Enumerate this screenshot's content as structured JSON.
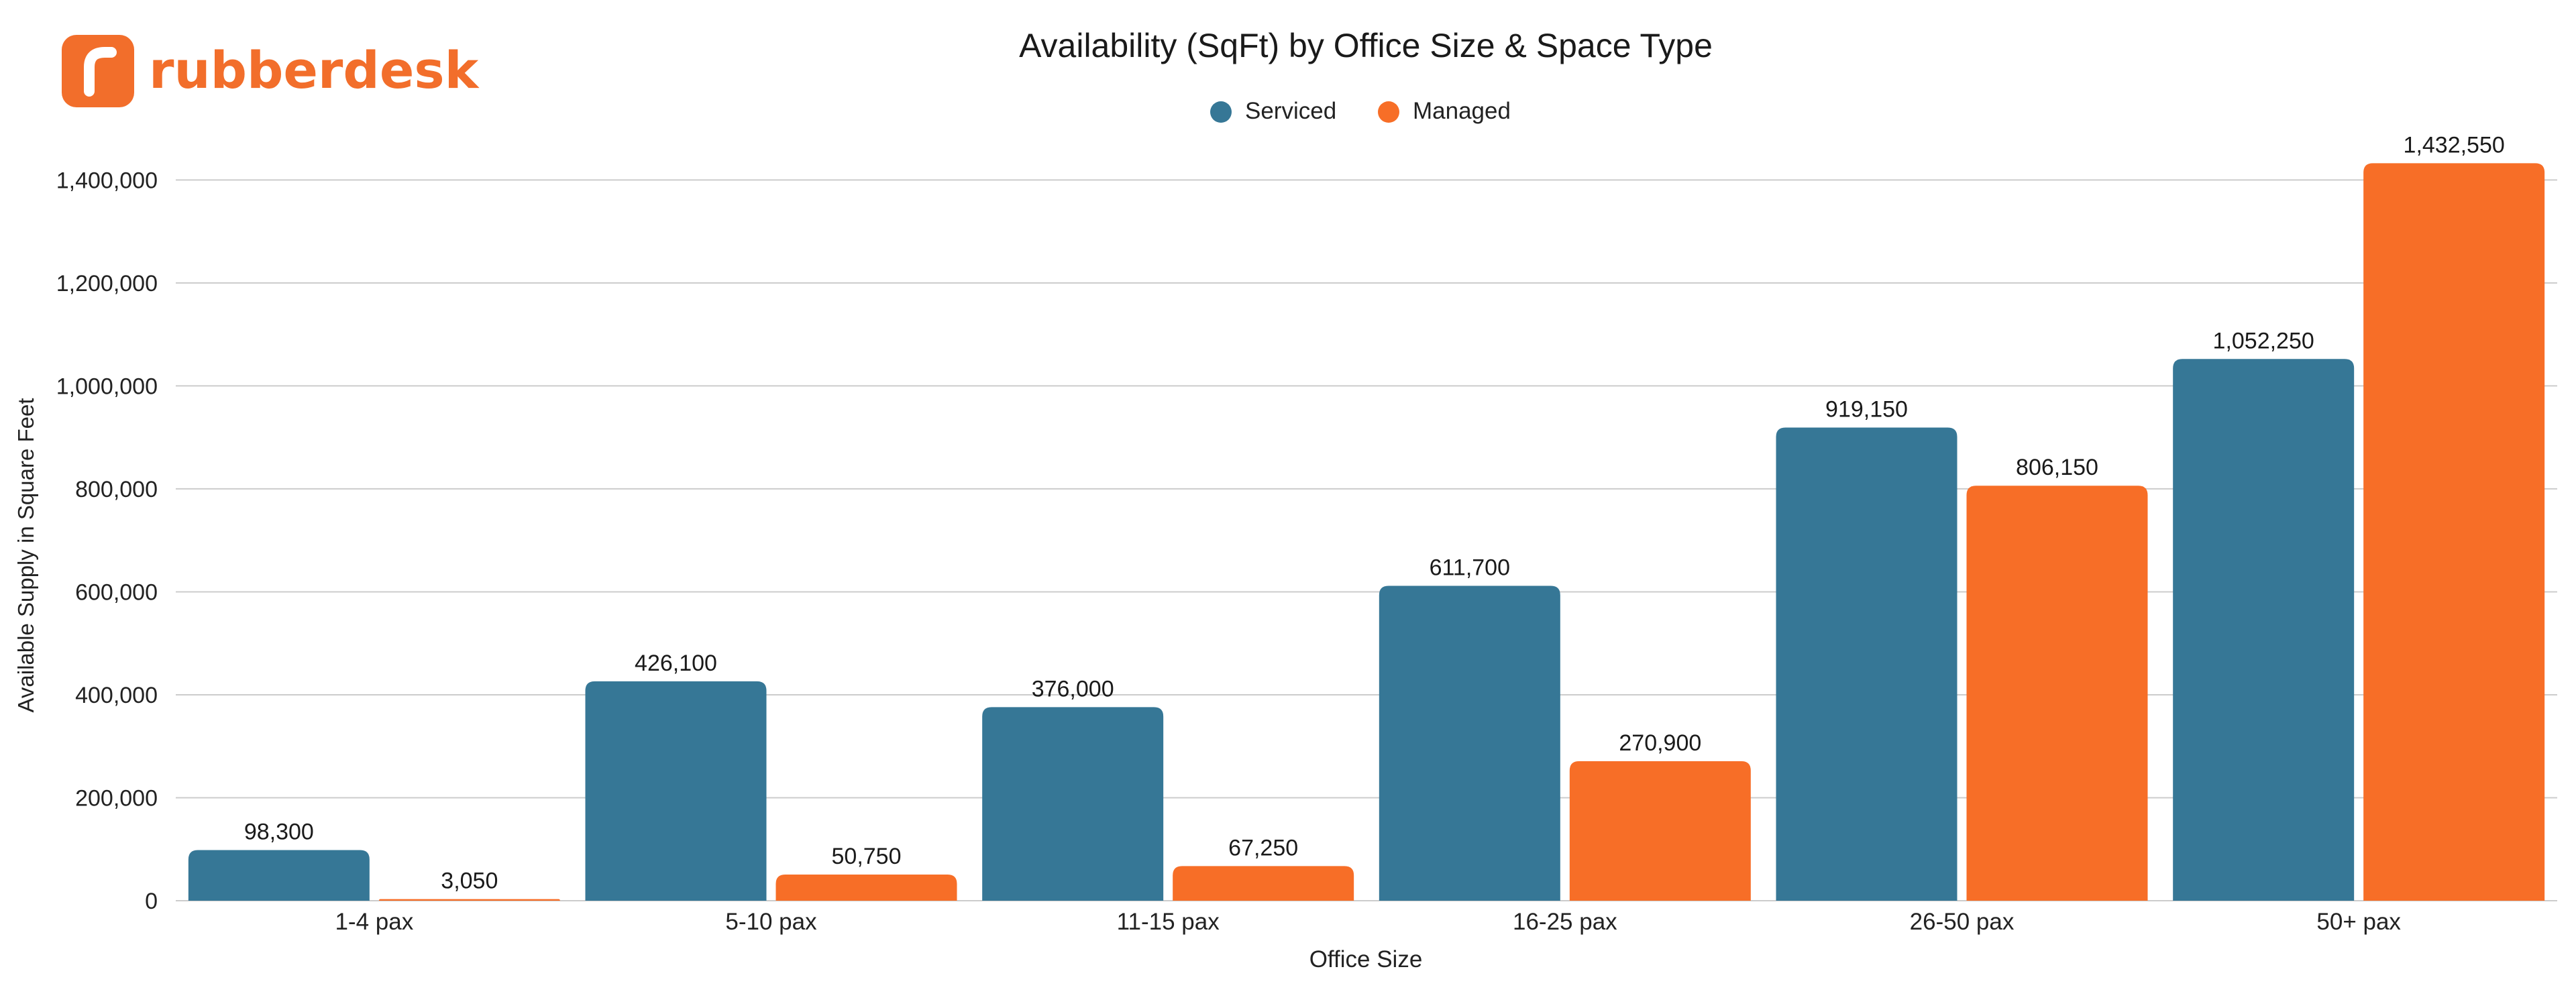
{
  "brand": {
    "name": "rubberdesk",
    "color": "#F26E2B"
  },
  "chart_data": {
    "type": "bar",
    "title": "Availability (SqFt) by Office Size & Space Type",
    "xlabel": "Office Size",
    "ylabel": "Available Supply in Square Feet",
    "categories": [
      "1-4 pax",
      "5-10 pax",
      "11-15 pax",
      "16-25 pax",
      "26-50 pax",
      "50+ pax"
    ],
    "series": [
      {
        "name": "Serviced",
        "color": "#367796",
        "values": [
          98300,
          426100,
          376000,
          611700,
          919150,
          1052250
        ],
        "labels": [
          "98,300",
          "426,100",
          "376,000",
          "611,700",
          "919,150",
          "1,052,250"
        ]
      },
      {
        "name": "Managed",
        "color": "#F76E27",
        "values": [
          3050,
          50750,
          67250,
          270900,
          806150,
          1432550
        ],
        "labels": [
          "3,050",
          "50,750",
          "67,250",
          "270,900",
          "806,150",
          "1,432,550"
        ]
      }
    ],
    "ylim": [
      0,
      1450000
    ],
    "yticks": [
      0,
      200000,
      400000,
      600000,
      800000,
      1000000,
      1200000,
      1400000
    ],
    "ytick_labels": [
      "0",
      "200,000",
      "400,000",
      "600,000",
      "800,000",
      "1,000,000",
      "1,200,000",
      "1,400,000"
    ],
    "grid": true,
    "legend": "top-center"
  }
}
